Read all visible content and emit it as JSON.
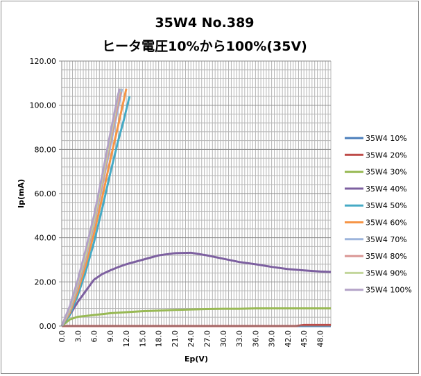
{
  "chart_data": {
    "type": "line",
    "title": "35W4 No.389",
    "subtitle": "ヒータ電圧10%から100%(35V)",
    "xlabel": "Ep(V)",
    "ylabel": "Ip(mA)",
    "xlim": [
      0,
      50
    ],
    "ylim": [
      0,
      120
    ],
    "x_ticks": [
      "0.0",
      "3.0",
      "6.0",
      "9.0",
      "12.0",
      "15.0",
      "18.0",
      "21.0",
      "24.0",
      "27.0",
      "30.0",
      "33.0",
      "36.0",
      "39.0",
      "42.0",
      "45.0",
      "48.0"
    ],
    "y_ticks": [
      "0.00",
      "20.00",
      "40.00",
      "60.00",
      "80.00",
      "100.00",
      "120.00"
    ],
    "grid": true,
    "legend": "right",
    "series": [
      {
        "name": "35W4 10%",
        "color": "#4A7EBB",
        "points": [
          [
            0,
            0
          ],
          [
            50,
            0
          ]
        ]
      },
      {
        "name": "35W4 20%",
        "color": "#BE4B48",
        "points": [
          [
            0,
            0
          ],
          [
            43.5,
            0
          ],
          [
            45,
            0.5
          ],
          [
            50,
            0.5
          ]
        ]
      },
      {
        "name": "35W4 30%",
        "color": "#98B954",
        "points": [
          [
            0,
            0
          ],
          [
            1.5,
            3
          ],
          [
            3,
            4.2
          ],
          [
            6,
            5
          ],
          [
            9,
            5.8
          ],
          [
            12,
            6.3
          ],
          [
            15,
            6.7
          ],
          [
            18,
            7
          ],
          [
            21,
            7.3
          ],
          [
            24,
            7.5
          ],
          [
            27,
            7.7
          ],
          [
            30,
            7.8
          ],
          [
            33,
            7.8
          ],
          [
            36,
            8
          ],
          [
            42,
            8
          ],
          [
            50,
            8
          ]
        ]
      },
      {
        "name": "35W4 40%",
        "color": "#7D60A0",
        "points": [
          [
            0,
            0
          ],
          [
            1.5,
            5
          ],
          [
            3,
            11
          ],
          [
            4.5,
            16
          ],
          [
            6,
            21
          ],
          [
            7.5,
            23.5
          ],
          [
            9,
            25.2
          ],
          [
            10.5,
            26.7
          ],
          [
            12,
            28
          ],
          [
            15,
            30
          ],
          [
            18,
            32
          ],
          [
            21,
            33
          ],
          [
            24,
            33.2
          ],
          [
            27,
            32
          ],
          [
            30,
            30.5
          ],
          [
            33,
            29
          ],
          [
            36,
            28
          ],
          [
            39,
            26.8
          ],
          [
            42,
            25.8
          ],
          [
            45,
            25.2
          ],
          [
            48,
            24.7
          ],
          [
            50,
            24.5
          ]
        ]
      },
      {
        "name": "35W4 50%",
        "color": "#46AAC5",
        "points": [
          [
            0,
            0
          ],
          [
            1.5,
            5
          ],
          [
            3,
            14
          ],
          [
            4.5,
            25
          ],
          [
            6,
            38
          ],
          [
            7.5,
            53
          ],
          [
            9,
            69
          ],
          [
            10.5,
            84
          ],
          [
            11.5,
            93
          ],
          [
            12.6,
            104
          ]
        ]
      },
      {
        "name": "35W4 60%",
        "color": "#F69546",
        "points": [
          [
            0,
            0
          ],
          [
            1.5,
            6
          ],
          [
            3,
            16
          ],
          [
            4.5,
            28
          ],
          [
            6,
            42
          ],
          [
            7.5,
            58
          ],
          [
            9,
            75
          ],
          [
            10.5,
            91
          ],
          [
            12,
            107.5
          ]
        ]
      },
      {
        "name": "35W4 70%",
        "color": "#9DB5DC",
        "points": [
          [
            0,
            0
          ],
          [
            1.5,
            7
          ],
          [
            3,
            18
          ],
          [
            4.5,
            31
          ],
          [
            6,
            46
          ],
          [
            7.5,
            63
          ],
          [
            9,
            81
          ],
          [
            10.5,
            99
          ],
          [
            11.2,
            107.5
          ]
        ]
      },
      {
        "name": "35W4 80%",
        "color": "#D99694",
        "points": [
          [
            0,
            0
          ],
          [
            1.5,
            7.5
          ],
          [
            3,
            19
          ],
          [
            4.5,
            32
          ],
          [
            6,
            47
          ],
          [
            7.5,
            64
          ],
          [
            9,
            83
          ],
          [
            10.5,
            101
          ],
          [
            11,
            106
          ]
        ]
      },
      {
        "name": "35W4 90%",
        "color": "#C3D69B",
        "points": [
          [
            0,
            0
          ],
          [
            1.5,
            8
          ],
          [
            3,
            20
          ],
          [
            4.5,
            33
          ],
          [
            6,
            48
          ],
          [
            7.5,
            66
          ],
          [
            9,
            85
          ],
          [
            10.5,
            104
          ],
          [
            10.9,
            107.5
          ]
        ]
      },
      {
        "name": "35W4 100%",
        "color": "#B3A2C7",
        "points": [
          [
            0,
            0
          ],
          [
            1.5,
            9
          ],
          [
            3,
            21
          ],
          [
            4.5,
            35
          ],
          [
            6,
            50
          ],
          [
            7.5,
            68
          ],
          [
            9,
            87
          ],
          [
            10.5,
            105
          ],
          [
            10.8,
            107.5
          ]
        ]
      }
    ]
  }
}
